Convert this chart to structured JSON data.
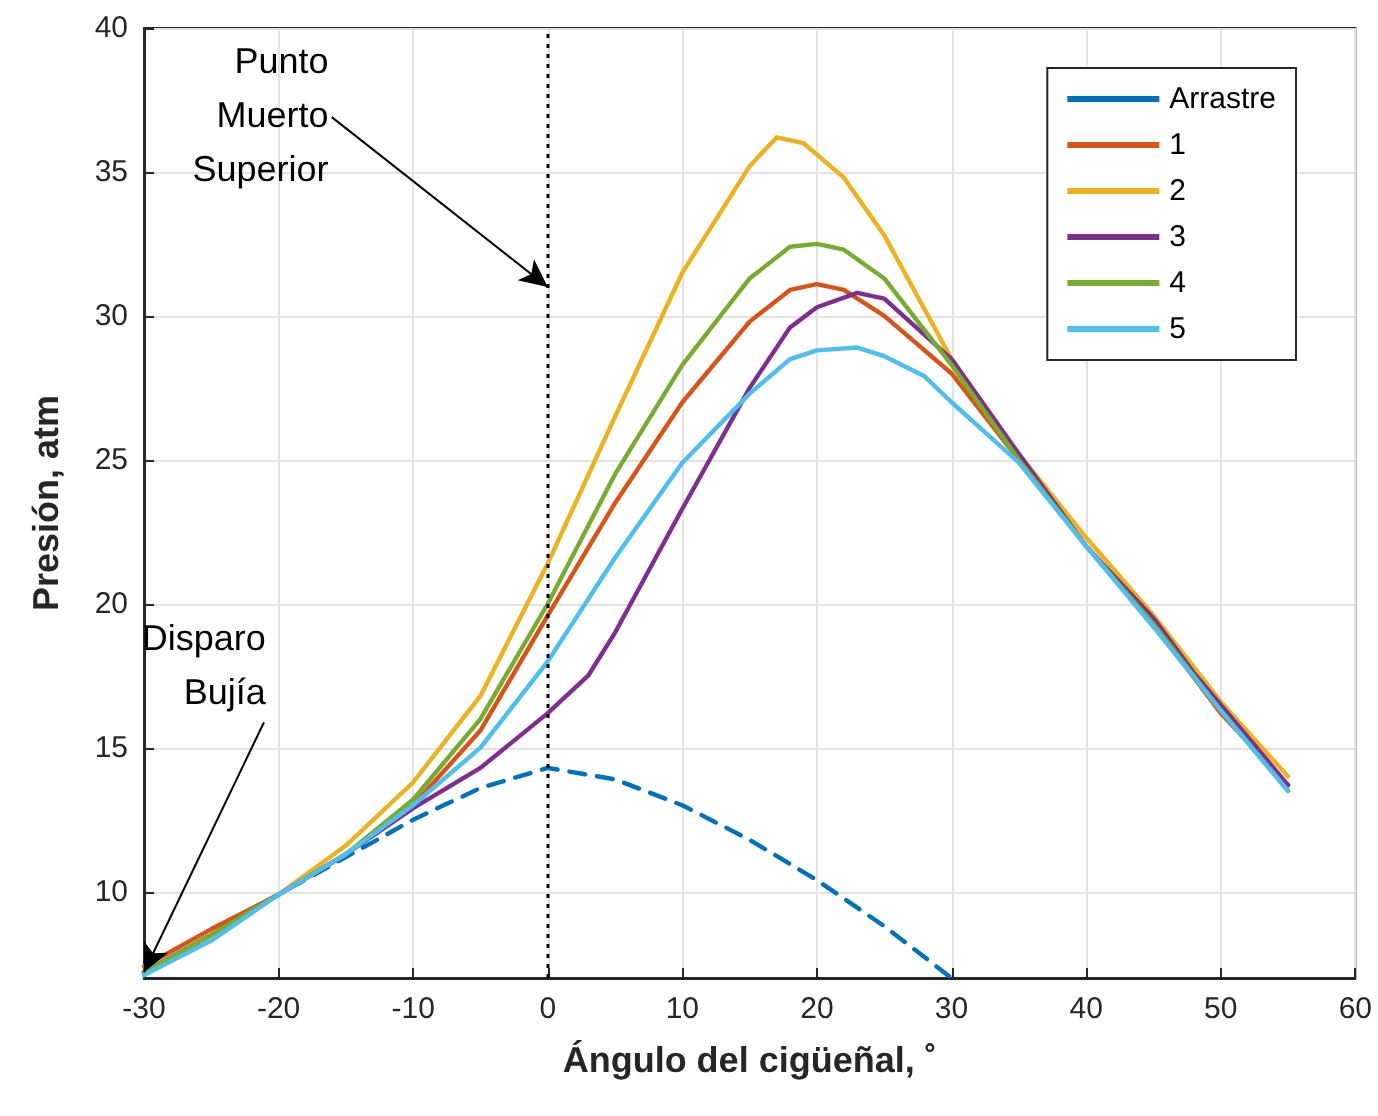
{
  "chart_data": {
    "type": "line",
    "xlabel": "Ángulo del cigüeñal, ˚",
    "ylabel": "Presión, atm",
    "xlim": [
      -30,
      60
    ],
    "xticks": [
      -30,
      -20,
      -10,
      0,
      10,
      20,
      30,
      40,
      50,
      60
    ],
    "ylim": [
      7,
      40
    ],
    "yticks": [
      10,
      15,
      20,
      25,
      30,
      35,
      40
    ],
    "grid": true,
    "legend": "top right",
    "marker": "none",
    "ref_lines": [
      {
        "axis": "x",
        "value": 0,
        "label": null,
        "color": "#000000",
        "line_style": "dotted"
      }
    ],
    "annotations": [
      {
        "text": "Punto Muerto Superior",
        "x": 0,
        "y": 31
      },
      {
        "text": "Disparo Bujía",
        "x": -30,
        "y": 7.2
      }
    ],
    "series": [
      {
        "name": "Arrastre",
        "color": "#0072bd",
        "line_style": "dashed",
        "x": [
          -30,
          -25,
          -20,
          -15,
          -10,
          -5,
          0,
          5,
          10,
          15,
          20,
          25,
          30
        ],
        "values": [
          7.2,
          8.5,
          9.9,
          11.2,
          12.5,
          13.6,
          14.3,
          13.9,
          13.0,
          11.8,
          10.4,
          8.8,
          7.0
        ]
      },
      {
        "name": "1",
        "color": "#d95319",
        "x": [
          -30,
          -25,
          -20,
          -15,
          -10,
          -5,
          0,
          5,
          10,
          15,
          18,
          20,
          22,
          25,
          30,
          35,
          40,
          45,
          50,
          55
        ],
        "values": [
          7.4,
          8.7,
          9.9,
          11.3,
          13.0,
          15.6,
          19.6,
          23.5,
          27.0,
          29.8,
          30.9,
          31.1,
          30.9,
          30.0,
          28.0,
          25.0,
          22.0,
          19.3,
          16.2,
          13.7
        ]
      },
      {
        "name": "2",
        "color": "#edb120",
        "x": [
          -30,
          -25,
          -20,
          -15,
          -10,
          -5,
          0,
          5,
          10,
          15,
          17,
          19,
          22,
          25,
          30,
          35,
          40,
          45,
          50,
          55
        ],
        "values": [
          7.2,
          8.5,
          9.9,
          11.6,
          13.8,
          16.8,
          21.4,
          26.5,
          31.5,
          35.2,
          36.2,
          36.0,
          34.8,
          32.8,
          28.5,
          25.2,
          22.3,
          19.6,
          16.6,
          14.0
        ]
      },
      {
        "name": "3",
        "color": "#7e2f8e",
        "x": [
          -30,
          -25,
          -20,
          -15,
          -10,
          -5,
          0,
          3,
          5,
          10,
          15,
          18,
          20,
          23,
          25,
          30,
          35,
          40,
          45,
          48,
          55
        ],
        "values": [
          7.2,
          8.5,
          9.9,
          11.3,
          12.9,
          14.3,
          16.2,
          17.5,
          19.0,
          23.3,
          27.5,
          29.6,
          30.3,
          30.8,
          30.6,
          28.5,
          25.2,
          22.0,
          19.5,
          17.6,
          13.7
        ]
      },
      {
        "name": "4",
        "color": "#77ac30",
        "x": [
          -30,
          -25,
          -20,
          -15,
          -10,
          -5,
          0,
          5,
          10,
          15,
          18,
          20,
          22,
          25,
          30,
          35,
          40,
          45,
          50,
          55
        ],
        "values": [
          7.2,
          8.5,
          9.9,
          11.3,
          13.2,
          16.0,
          20.0,
          24.5,
          28.3,
          31.3,
          32.4,
          32.5,
          32.3,
          31.3,
          28.3,
          25.0,
          22.0,
          19.3,
          16.3,
          13.5
        ]
      },
      {
        "name": "5",
        "color": "#4dbeee",
        "x": [
          -30,
          -25,
          -20,
          -15,
          -10,
          -5,
          0,
          5,
          10,
          15,
          18,
          20,
          23,
          25,
          28,
          30,
          35,
          40,
          45,
          50,
          55
        ],
        "values": [
          7.1,
          8.3,
          9.9,
          11.3,
          13.0,
          15.0,
          18.0,
          21.6,
          24.9,
          27.3,
          28.5,
          28.8,
          28.9,
          28.6,
          27.9,
          27.0,
          24.9,
          22.0,
          19.2,
          16.3,
          13.5
        ]
      }
    ]
  }
}
